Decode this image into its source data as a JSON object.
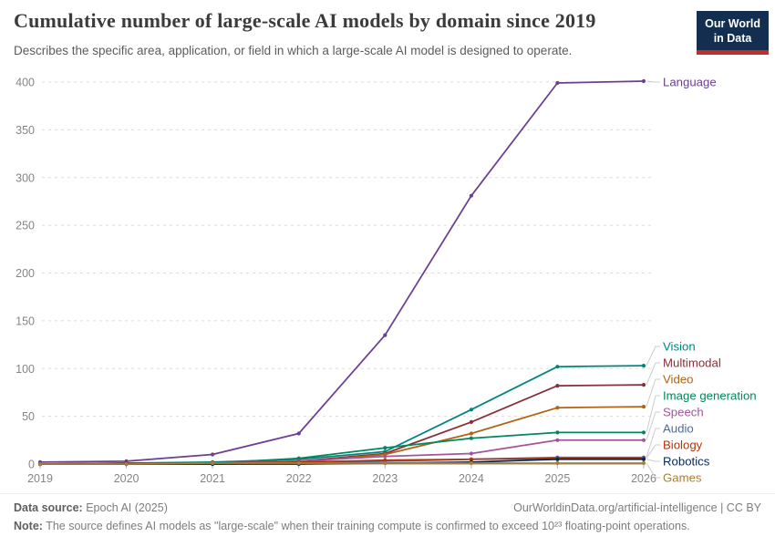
{
  "header": {
    "title": "Cumulative number of large-scale AI models by domain since 2019",
    "subtitle": "Describes the specific area, application, or field in which a large-scale AI model is designed to operate.",
    "logo": {
      "line1": "Our World",
      "line2": "in Data"
    }
  },
  "chart_data": {
    "type": "line",
    "title": "Cumulative number of large-scale AI models by domain since 2019",
    "x": [
      2019,
      2020,
      2021,
      2022,
      2023,
      2024,
      2025,
      2026
    ],
    "series": [
      {
        "name": "Language",
        "color": "#6D3E91",
        "values": [
          2,
          3,
          10,
          32,
          135,
          281,
          399,
          401
        ]
      },
      {
        "name": "Vision",
        "color": "#00847E",
        "values": [
          0,
          1,
          2,
          5,
          13,
          57,
          102,
          103
        ]
      },
      {
        "name": "Multimodal",
        "color": "#883039",
        "values": [
          0,
          1,
          1,
          3,
          11,
          44,
          82,
          83
        ]
      },
      {
        "name": "Video",
        "color": "#B16214",
        "values": [
          0,
          0,
          1,
          2,
          10,
          32,
          59,
          60
        ]
      },
      {
        "name": "Image generation",
        "color": "#00875E",
        "values": [
          0,
          0,
          1,
          6,
          17,
          27,
          33,
          33
        ]
      },
      {
        "name": "Speech",
        "color": "#A2559C",
        "values": [
          0,
          0,
          1,
          3,
          8,
          11,
          25,
          25
        ]
      },
      {
        "name": "Audio",
        "color": "#4C6A9C",
        "values": [
          0,
          0,
          0,
          1,
          3,
          5,
          7,
          7
        ]
      },
      {
        "name": "Biology",
        "color": "#B13507",
        "values": [
          0,
          0,
          1,
          2,
          4,
          5,
          6,
          6
        ]
      },
      {
        "name": "Robotics",
        "color": "#00295B",
        "values": [
          0,
          0,
          0,
          0,
          1,
          2,
          5,
          5
        ]
      },
      {
        "name": "Games",
        "color": "#A77E38",
        "values": [
          0,
          0,
          1,
          1,
          1,
          1,
          1,
          1
        ]
      }
    ],
    "xlabel": "",
    "ylabel": "",
    "ylim": [
      0,
      400
    ],
    "yticks": [
      0,
      50,
      100,
      150,
      200,
      250,
      300,
      350,
      400
    ],
    "grid": true,
    "legend_position": "right"
  },
  "footer": {
    "datasource_label": "Data source:",
    "datasource_value": "Epoch AI (2025)",
    "link_text": "OurWorldinData.org/artificial-intelligence | CC BY",
    "note_label": "Note:",
    "note_text": "The source defines AI models as \"large-scale\" when their training compute is confirmed to exceed 10²³ floating-point operations."
  },
  "colors": {
    "accent_navy": "#132E4F",
    "accent_red": "#C22E28"
  }
}
